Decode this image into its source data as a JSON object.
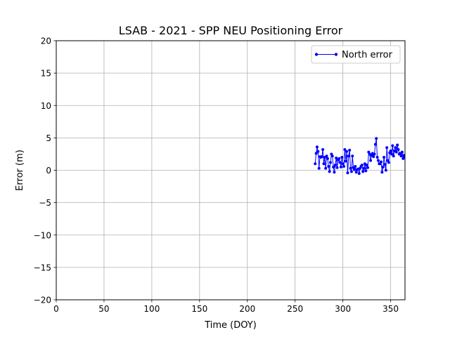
{
  "chart_data": {
    "type": "line",
    "title": "LSAB - 2021 - SPP NEU Positioning Error",
    "xlabel": "Time (DOY)",
    "ylabel": "Error (m)",
    "xlim": [
      0,
      365
    ],
    "ylim": [
      -20,
      20
    ],
    "xticks": [
      0,
      50,
      100,
      150,
      200,
      250,
      300,
      350
    ],
    "yticks": [
      -20,
      -15,
      -10,
      -5,
      0,
      5,
      10,
      15,
      20
    ],
    "xtick_labels": [
      "0",
      "50",
      "100",
      "150",
      "200",
      "250",
      "300",
      "350"
    ],
    "ytick_labels": [
      "−20",
      "−15",
      "−10",
      "−5",
      "0",
      "5",
      "10",
      "15",
      "20"
    ],
    "grid": true,
    "legend_position": "top-right",
    "series": [
      {
        "name": "North error",
        "color": "#0000ff",
        "marker": "circle",
        "x": [
          271,
          272,
          273,
          274,
          275,
          276,
          277,
          278,
          279,
          280,
          281,
          282,
          283,
          284,
          285,
          286,
          287,
          288,
          289,
          290,
          291,
          292,
          293,
          294,
          295,
          296,
          297,
          298,
          299,
          300,
          301,
          302,
          303,
          304,
          305,
          306,
          307,
          308,
          309,
          310,
          311,
          312,
          313,
          314,
          315,
          316,
          317,
          318,
          319,
          320,
          321,
          322,
          323,
          324,
          325,
          326,
          327,
          328,
          329,
          330,
          331,
          332,
          333,
          334,
          335,
          336,
          337,
          338,
          339,
          340,
          341,
          342,
          343,
          344,
          345,
          346,
          347,
          348,
          349,
          350,
          351,
          352,
          353,
          354,
          355,
          356,
          357,
          358,
          359,
          360,
          361,
          362,
          363,
          364,
          365
        ],
        "y": [
          1.0,
          2.6,
          3.6,
          2.9,
          0.3,
          2.1,
          2.0,
          2.1,
          3.2,
          1.0,
          2.0,
          0.3,
          2.2,
          1.8,
          0.6,
          -0.2,
          1.2,
          2.5,
          2.2,
          0.5,
          -0.3,
          0.8,
          1.9,
          0.4,
          1.6,
          1.8,
          1.2,
          0.5,
          2.0,
          1.0,
          0.6,
          3.2,
          1.4,
          2.9,
          -0.4,
          2.2,
          3.1,
          0.3,
          -0.2,
          2.2,
          0.4,
          0.1,
          0.6,
          -0.3,
          0.1,
          0.2,
          -0.5,
          0.3,
          0.6,
          0.8,
          -0.2,
          0.3,
          1.0,
          -0.1,
          0.8,
          0.4,
          2.8,
          2.5,
          1.5,
          2.3,
          2.6,
          2.1,
          2.5,
          4.0,
          4.9,
          2.0,
          1.5,
          1.0,
          1.0,
          1.3,
          -0.3,
          0.5,
          2.0,
          0.9,
          0.0,
          3.5,
          1.5,
          1.2,
          2.7,
          3.0,
          2.5,
          3.8,
          2.2,
          3.0,
          3.5,
          2.8,
          3.9,
          3.2,
          2.5,
          2.6,
          2.2,
          2.8,
          1.8,
          2.3,
          2.0
        ]
      }
    ]
  }
}
